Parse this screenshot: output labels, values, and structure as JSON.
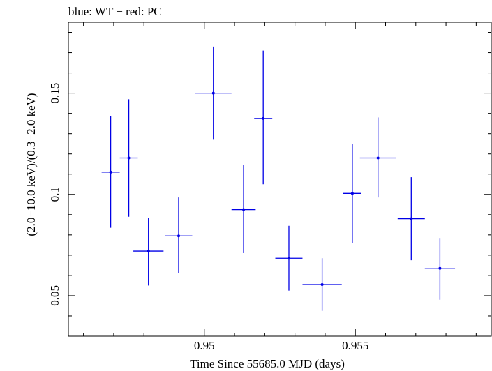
{
  "chart_data": {
    "type": "scatter",
    "title": "blue: WT − red: PC",
    "xlabel": "Time Since 55685.0 MJD (days)",
    "ylabel": "(2.0−10.0 keV)/(0.3−2.0 keV)",
    "xlim": [
      0.9455,
      0.9595
    ],
    "ylim": [
      0.03,
      0.185
    ],
    "xticks": [
      0.95,
      0.955
    ],
    "xtick_labels": [
      "0.95",
      "0.955"
    ],
    "yticks": [
      0.05,
      0.1,
      0.15
    ],
    "ytick_labels": [
      "0.05",
      "0.1",
      "0.15"
    ],
    "grid": false,
    "series": [
      {
        "color": "#0000e6",
        "points": [
          {
            "x": 0.9469,
            "y": 0.111,
            "xerr": 0.0003,
            "ylo": 0.0835,
            "yhi": 0.1385
          },
          {
            "x": 0.9475,
            "y": 0.118,
            "xerr": 0.0003,
            "ylo": 0.089,
            "yhi": 0.147
          },
          {
            "x": 0.94815,
            "y": 0.072,
            "xerr": 0.0005,
            "ylo": 0.055,
            "yhi": 0.0885
          },
          {
            "x": 0.94915,
            "y": 0.0795,
            "xerr": 0.00045,
            "ylo": 0.061,
            "yhi": 0.0985
          },
          {
            "x": 0.9503,
            "y": 0.15,
            "xerr": 0.0006,
            "ylo": 0.127,
            "yhi": 0.173
          },
          {
            "x": 0.9513,
            "y": 0.0925,
            "xerr": 0.0004,
            "ylo": 0.071,
            "yhi": 0.1145
          },
          {
            "x": 0.95195,
            "y": 0.1375,
            "xerr": 0.0003,
            "ylo": 0.105,
            "yhi": 0.171
          },
          {
            "x": 0.9528,
            "y": 0.0685,
            "xerr": 0.00045,
            "ylo": 0.0525,
            "yhi": 0.0845
          },
          {
            "x": 0.9539,
            "y": 0.0555,
            "xerr": 0.00065,
            "ylo": 0.0425,
            "yhi": 0.0685
          },
          {
            "x": 0.9549,
            "y": 0.1005,
            "xerr": 0.0003,
            "ylo": 0.076,
            "yhi": 0.125
          },
          {
            "x": 0.95575,
            "y": 0.118,
            "xerr": 0.0006,
            "ylo": 0.0985,
            "yhi": 0.138
          },
          {
            "x": 0.95685,
            "y": 0.088,
            "xerr": 0.00045,
            "ylo": 0.0675,
            "yhi": 0.1085
          },
          {
            "x": 0.9578,
            "y": 0.0635,
            "xerr": 0.0005,
            "ylo": 0.048,
            "yhi": 0.0785
          }
        ]
      }
    ]
  }
}
